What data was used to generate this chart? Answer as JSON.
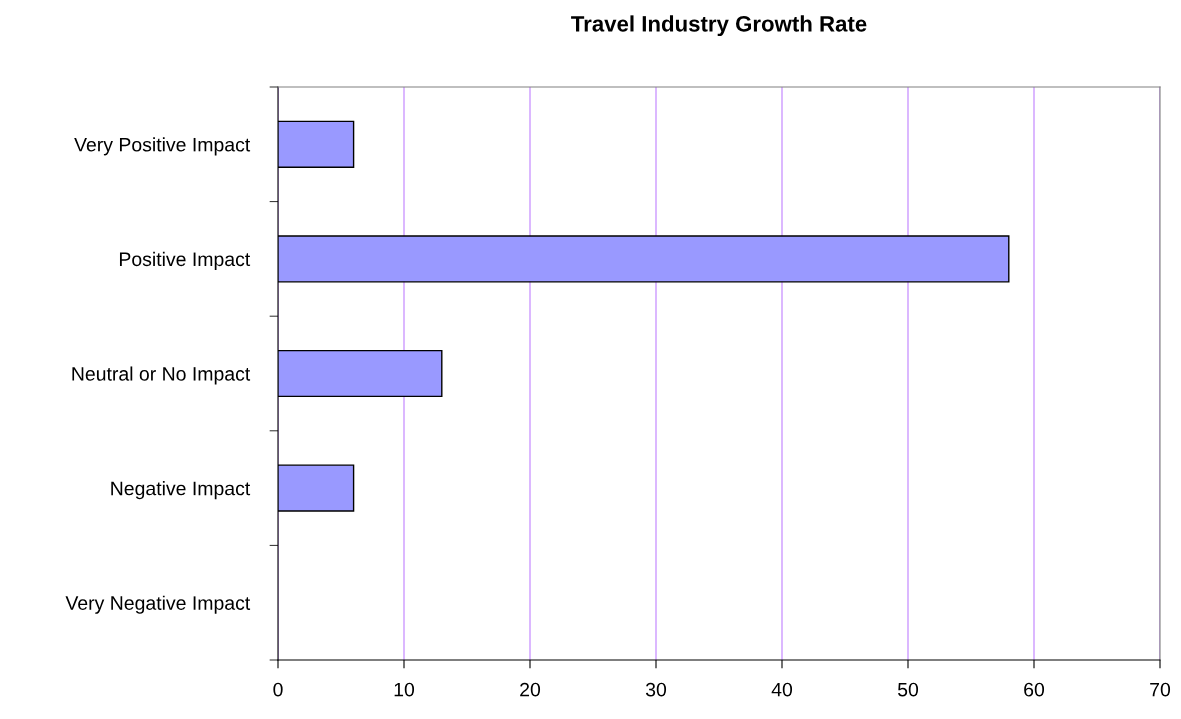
{
  "chart_data": {
    "type": "bar",
    "orientation": "horizontal",
    "title": "Travel Industry Growth Rate",
    "categories": [
      "Very Positive Impact",
      "Positive Impact",
      "Neutral or No Impact",
      "Negative Impact",
      "Very Negative Impact"
    ],
    "values": [
      6,
      58,
      13,
      6,
      0
    ],
    "color": "#9999ff",
    "xlim": [
      0,
      70
    ],
    "xticks": [
      0,
      10,
      20,
      30,
      40,
      50,
      60,
      70
    ],
    "grid": "x",
    "legend": false
  }
}
